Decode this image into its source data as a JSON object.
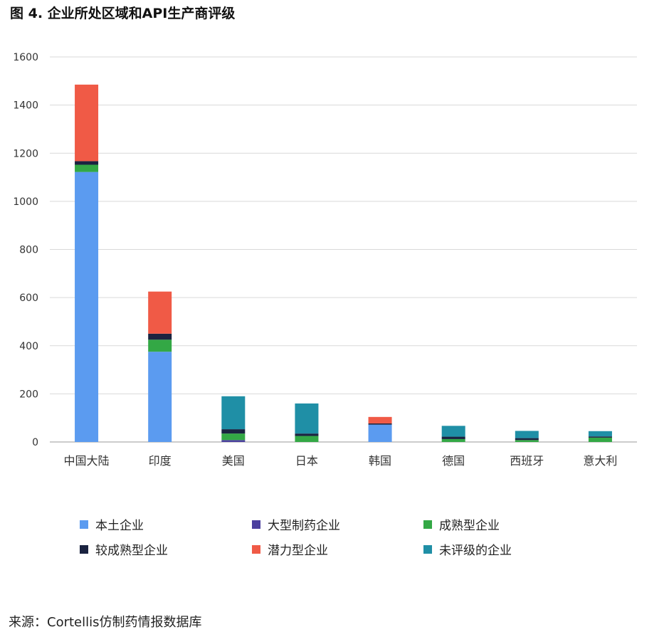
{
  "title": "图 4. 企业所处区域和API生产商评级",
  "source": "来源：Cortellis仿制药情报数据库",
  "colors": {
    "grid": "#d9d9d9",
    "axis": "#999999"
  },
  "chart_data": {
    "type": "bar",
    "stacked": true,
    "title": "图 4. 企业所处区域和API生产商评级",
    "xlabel": "",
    "ylabel": "",
    "ylim": [
      0,
      1600
    ],
    "yticks": [
      0,
      200,
      400,
      600,
      800,
      1000,
      1200,
      1400,
      1600
    ],
    "grid": true,
    "legend_position": "bottom",
    "categories": [
      "中国大陆",
      "印度",
      "美国",
      "日本",
      "韩国",
      "德国",
      "西班牙",
      "意大利"
    ],
    "series": [
      {
        "name": "本土企业",
        "color": "#5b9bf0",
        "values": [
          1122,
          375,
          0,
          0,
          72,
          0,
          0,
          0
        ]
      },
      {
        "name": "大型制药企业",
        "color": "#4b3f9e",
        "values": [
          0,
          0,
          8,
          0,
          0,
          0,
          0,
          0
        ]
      },
      {
        "name": "成熟型企业",
        "color": "#33a845",
        "values": [
          30,
          50,
          27,
          25,
          0,
          12,
          8,
          18
        ]
      },
      {
        "name": "较成熟型企业",
        "color": "#1a2340",
        "values": [
          15,
          25,
          18,
          10,
          5,
          10,
          8,
          5
        ]
      },
      {
        "name": "潜力型企业",
        "color": "#f05a46",
        "values": [
          318,
          175,
          0,
          0,
          27,
          0,
          0,
          0
        ]
      },
      {
        "name": "未评级的企业",
        "color": "#1f8fa6",
        "values": [
          0,
          0,
          137,
          125,
          0,
          45,
          30,
          22
        ]
      }
    ]
  }
}
